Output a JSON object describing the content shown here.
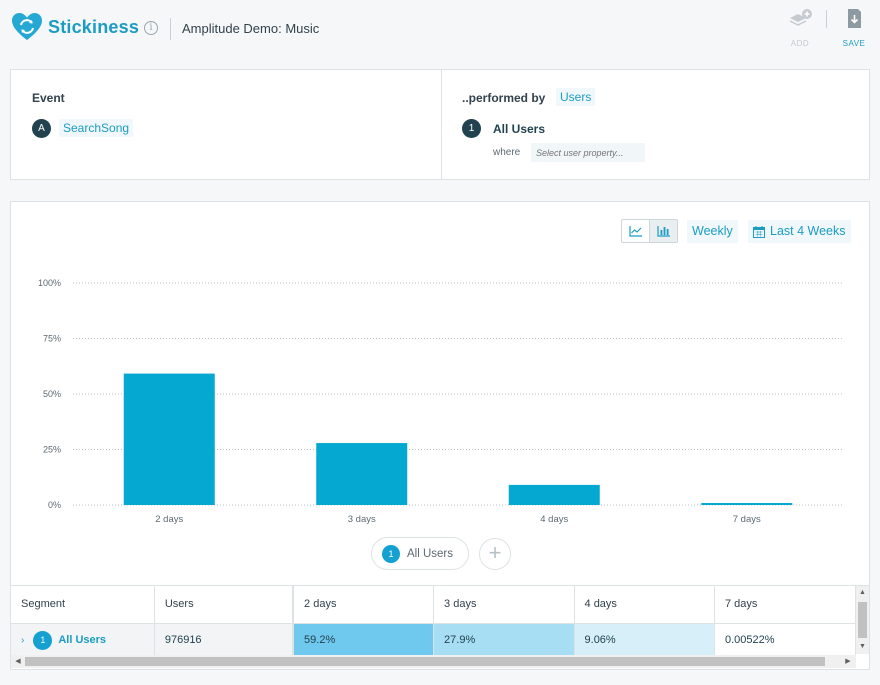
{
  "header": {
    "app_title": "Stickiness",
    "info_glyph": "i",
    "project_name": "Amplitude Demo: Music",
    "add_label": "ADD",
    "save_label": "SAVE"
  },
  "query": {
    "event_label": "Event",
    "event_badge": "A",
    "event_name": "SearchSong",
    "performed_by_label": "..performed by",
    "performed_by_value": "Users",
    "segment_badge": "1",
    "segment_name": "All Users",
    "where_label": "where",
    "property_placeholder": "Select user property..."
  },
  "controls": {
    "interval": "Weekly",
    "date_range": "Last 4 Weeks"
  },
  "colors": {
    "accent": "#1b9cc3",
    "bar": "#04a8d0",
    "dark_badge": "#22424f"
  },
  "chart_data": {
    "type": "bar",
    "categories": [
      "2 days",
      "3 days",
      "4 days",
      "7 days"
    ],
    "series": [
      {
        "name": "All Users",
        "values": [
          59.2,
          27.9,
          9.06,
          0.00522
        ]
      }
    ],
    "y_ticks": [
      "0%",
      "25%",
      "50%",
      "75%",
      "100%"
    ],
    "ylim": [
      0,
      100
    ],
    "grid": true,
    "legend_position": "bottom-center"
  },
  "legend": {
    "badge": "1",
    "label": "All Users",
    "add_glyph": "+"
  },
  "table": {
    "headers": [
      "Segment",
      "Users",
      "2 days",
      "3 days",
      "4 days",
      "7 days"
    ],
    "rows": [
      {
        "chevron": "›",
        "badge": "1",
        "segment": "All Users",
        "users": "976916",
        "cells": [
          "59.2%",
          "27.9%",
          "9.06%",
          "0.00522%"
        ]
      }
    ]
  }
}
